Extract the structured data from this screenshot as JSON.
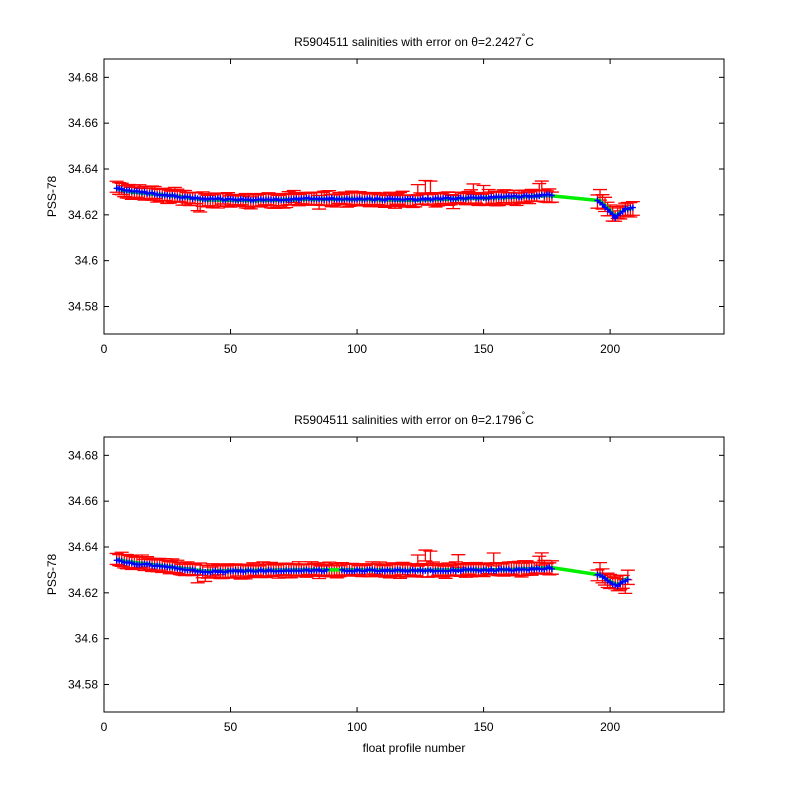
{
  "chart_data": [
    {
      "type": "line",
      "title": "R5904511 salinities with error on θ=2.2427°C",
      "title_parts": {
        "prefix": "R5904511 salinities with error on θ=2.2427",
        "degree": "°",
        "suffix": "C"
      },
      "xlabel": "",
      "ylabel": "PSS-78",
      "xlim": [
        0,
        245
      ],
      "ylim": [
        34.568,
        34.688
      ],
      "xticks": [
        0,
        50,
        100,
        150,
        200
      ],
      "xtick_labels": [
        "0",
        "50",
        "100",
        "150",
        "200"
      ],
      "yticks": [
        34.58,
        34.6,
        34.62,
        34.64,
        34.66,
        34.68
      ],
      "ytick_labels": [
        "34.58",
        "34.6",
        "34.62",
        "34.64",
        "34.66",
        "34.68"
      ],
      "colors": {
        "errorbar": "#ff0000",
        "mapped": "#00ee00",
        "calibrated": "#0000ff"
      },
      "bumps": [
        [
          5,
          0.0005
        ],
        [
          20,
          0.0008
        ],
        [
          37,
          -0.0018
        ],
        [
          38,
          -0.002
        ],
        [
          58,
          -0.0008
        ],
        [
          75,
          0.001
        ],
        [
          85,
          -0.0012
        ],
        [
          118,
          0.0012
        ],
        [
          124,
          0.004
        ],
        [
          127,
          0.0058
        ],
        [
          129,
          0.005
        ],
        [
          138,
          -0.0015
        ],
        [
          146,
          0.004
        ],
        [
          150,
          0.003
        ],
        [
          163,
          -0.0005
        ],
        [
          172,
          0.003
        ],
        [
          173,
          0.004
        ],
        [
          196,
          0.002
        ]
      ],
      "series": [
        {
          "values": [
            [
              5,
              34.6315
            ],
            [
              10,
              34.63
            ],
            [
              20,
              34.629
            ],
            [
              30,
              34.628
            ],
            [
              40,
              34.6265
            ],
            [
              60,
              34.6262
            ],
            [
              80,
              34.6268
            ],
            [
              100,
              34.6268
            ],
            [
              120,
              34.6263
            ],
            [
              140,
              34.627
            ],
            [
              160,
              34.6276
            ],
            [
              176,
              34.6284
            ],
            [
              196,
              34.6262
            ],
            [
              200,
              34.622
            ],
            [
              202,
              34.6195
            ],
            [
              206,
              34.6225
            ],
            [
              209,
              34.6228
            ]
          ]
        },
        {
          "values": [
            [
              5,
              34.6312
            ],
            [
              10,
              34.6305
            ],
            [
              20,
              34.6292
            ],
            [
              30,
              34.6278
            ],
            [
              40,
              34.6268
            ],
            [
              60,
              34.6265
            ],
            [
              80,
              34.627
            ],
            [
              100,
              34.627
            ],
            [
              120,
              34.6266
            ],
            [
              140,
              34.6272
            ],
            [
              160,
              34.6278
            ],
            [
              176,
              34.6286
            ],
            [
              195,
              34.626
            ],
            [
              200,
              34.6215
            ],
            [
              202,
              34.619
            ],
            [
              206,
              34.6225
            ],
            [
              209,
              34.623
            ]
          ]
        }
      ]
    },
    {
      "type": "line",
      "title": "R5904511 salinities with error on θ=2.1796°C",
      "title_parts": {
        "prefix": "R5904511 salinities with error on θ=2.1796",
        "degree": "°",
        "suffix": "C"
      },
      "xlabel": "float profile number",
      "ylabel": "PSS-78",
      "xlim": [
        0,
        245
      ],
      "ylim": [
        34.568,
        34.688
      ],
      "xticks": [
        0,
        50,
        100,
        150,
        200
      ],
      "xtick_labels": [
        "0",
        "50",
        "100",
        "150",
        "200"
      ],
      "yticks": [
        34.58,
        34.6,
        34.62,
        34.64,
        34.66,
        34.68
      ],
      "ytick_labels": [
        "34.58",
        "34.6",
        "34.62",
        "34.64",
        "34.66",
        "34.68"
      ],
      "colors": {
        "errorbar": "#ff0000",
        "mapped": "#00ee00",
        "calibrated": "#0000ff"
      },
      "bumps": [
        [
          7,
          0.001
        ],
        [
          15,
          0.001
        ],
        [
          37,
          -0.0025
        ],
        [
          40,
          -0.002
        ],
        [
          60,
          0.0008
        ],
        [
          75,
          0.0008
        ],
        [
          85,
          -0.001
        ],
        [
          118,
          0.0012
        ],
        [
          124,
          0.004
        ],
        [
          127,
          0.0065
        ],
        [
          129,
          0.0055
        ],
        [
          135,
          -0.0015
        ],
        [
          140,
          0.0035
        ],
        [
          154,
          0.004
        ],
        [
          172,
          0.0025
        ],
        [
          173,
          0.0035
        ],
        [
          196,
          0.002
        ],
        [
          206,
          -0.0035
        ]
      ],
      "series": [
        {
          "values": [
            [
              5,
              34.6345
            ],
            [
              10,
              34.6335
            ],
            [
              20,
              34.6322
            ],
            [
              30,
              34.6308
            ],
            [
              40,
              34.6295
            ],
            [
              60,
              34.6298
            ],
            [
              80,
              34.63
            ],
            [
              90,
              34.63
            ],
            [
              100,
              34.63
            ],
            [
              120,
              34.6298
            ],
            [
              140,
              34.63
            ],
            [
              160,
              34.6302
            ],
            [
              177,
              34.631
            ],
            [
              196,
              34.6278
            ],
            [
              200,
              34.625
            ],
            [
              203,
              34.6235
            ],
            [
              207,
              34.6265
            ]
          ]
        },
        {
          "values": [
            [
              5,
              34.6342
            ],
            [
              10,
              34.633
            ],
            [
              20,
              34.632
            ],
            [
              30,
              34.6305
            ],
            [
              40,
              34.6292
            ],
            [
              60,
              34.6296
            ],
            [
              80,
              34.6298
            ],
            [
              100,
              34.6298
            ],
            [
              120,
              34.6296
            ],
            [
              140,
              34.6298
            ],
            [
              160,
              34.63
            ],
            [
              177,
              34.6308
            ],
            [
              196,
              34.6275
            ],
            [
              200,
              34.6245
            ],
            [
              203,
              34.623
            ],
            [
              207,
              34.6262
            ]
          ]
        }
      ]
    }
  ]
}
